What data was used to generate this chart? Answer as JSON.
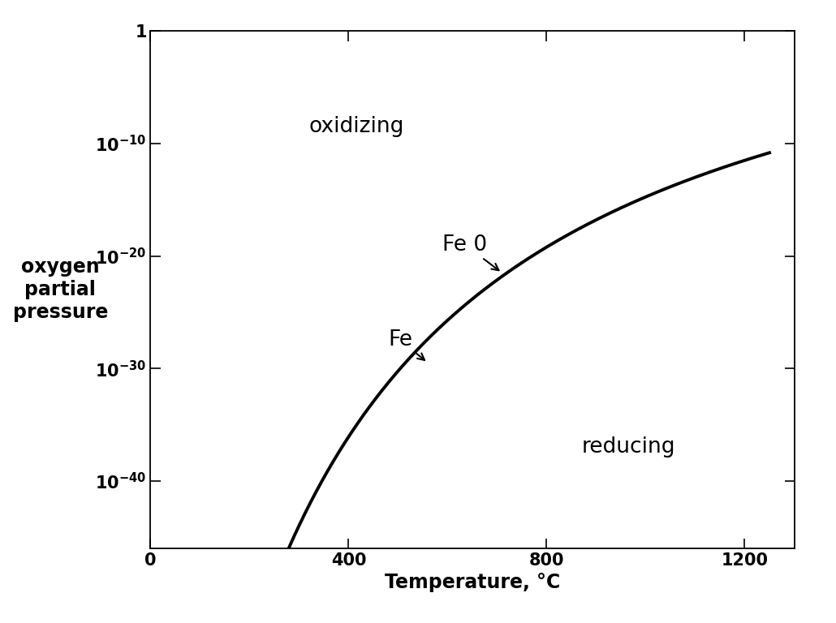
{
  "title": "",
  "xlabel": "Temperature, °C",
  "ylabel": "oxygen\npartial\npressure",
  "xlim": [
    0,
    1300
  ],
  "ylim_exp": [
    -46,
    0
  ],
  "xticks": [
    0,
    400,
    800,
    1200
  ],
  "yticks_exp": [
    0,
    -10,
    -20,
    -30,
    -40
  ],
  "curve_color": "#000000",
  "curve_linewidth": 2.8,
  "background_color": "#ffffff",
  "label_oxidizing": "oxidizing",
  "label_reducing": "reducing",
  "label_FeO": "Fe 0",
  "label_Fe": "Fe",
  "curve_A": -30488,
  "curve_B": 6.55,
  "curve_T_start": 270,
  "curve_T_end": 1250,
  "annotation_fontsize": 19,
  "region_fontsize": 19,
  "axis_label_fontsize": 17,
  "tick_fontsize": 15,
  "xlabel_fontsize": 17,
  "xlabel_fontweight": "bold",
  "ylabel_fontweight": "bold",
  "tick_label_fontweight": "bold"
}
